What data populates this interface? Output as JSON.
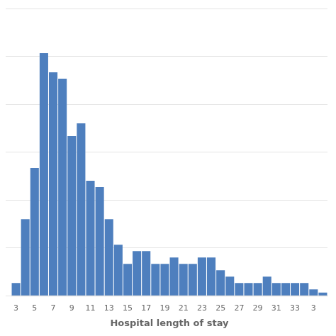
{
  "chart_data": {
    "type": "bar",
    "x_label": "Hospital length of stay",
    "categories": [
      "3",
      null,
      "5",
      null,
      "7",
      null,
      "9",
      null,
      "11",
      null,
      "13",
      null,
      "15",
      null,
      "17",
      null,
      "19",
      null,
      "21",
      null,
      "23",
      null,
      "25",
      null,
      "27",
      null,
      "29",
      null,
      "31",
      null,
      "33",
      null,
      "3",
      null
    ],
    "values": [
      2,
      12,
      20,
      38,
      35,
      34,
      25,
      27,
      18,
      17,
      12,
      8,
      5,
      7,
      7,
      5,
      5,
      6,
      5,
      5,
      6,
      6,
      4,
      3,
      2,
      2,
      2,
      3,
      2,
      2,
      2,
      2,
      1,
      0.5
    ],
    "color": "#4E7FBE",
    "ylim": [
      0,
      45
    ],
    "yticks": [
      0,
      7.5,
      15,
      22.5,
      30,
      37.5,
      45
    ],
    "grid": true,
    "tick_labels": "x"
  }
}
